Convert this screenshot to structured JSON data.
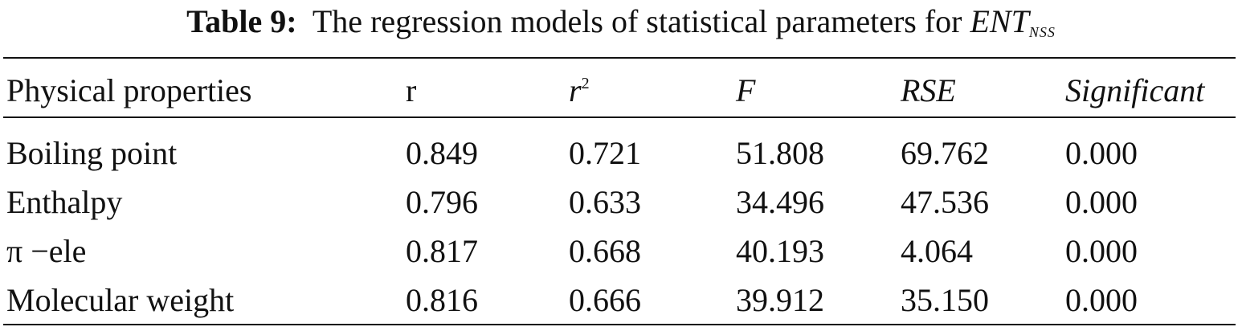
{
  "caption": {
    "label": "Table 9:",
    "text": "The regression models of statistical parameters for",
    "symbol": "ENT",
    "subscript": "NSS"
  },
  "header": {
    "col0": "Physical properties",
    "col1": "r",
    "col2_base": "r",
    "col2_sup": "2",
    "col3": "F",
    "col4": "RSE",
    "col5": "Significant"
  },
  "rows": [
    {
      "property": "Boiling point",
      "r": "0.849",
      "r2": "0.721",
      "F": "51.808",
      "RSE": "69.762",
      "sig": "0.000"
    },
    {
      "property": "Enthalpy",
      "r": "0.796",
      "r2": "0.633",
      "F": "34.496",
      "RSE": "47.536",
      "sig": "0.000"
    },
    {
      "property": "π −ele",
      "r": "0.817",
      "r2": "0.668",
      "F": "40.193",
      "RSE": "4.064",
      "sig": "0.000"
    },
    {
      "property": "Molecular weight",
      "r": "0.816",
      "r2": "0.666",
      "F": "39.912",
      "RSE": "35.150",
      "sig": "0.000"
    }
  ]
}
